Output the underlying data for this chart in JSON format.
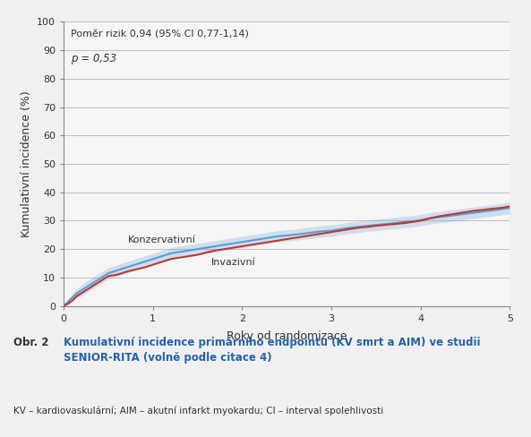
{
  "annotation_line1": "Poměr rizik 0,94 (95% CI 0,77-1,14)",
  "annotation_line2": "p = 0,53",
  "xlabel": "Roky od randomizace",
  "ylabel": "Kumulativní incidence (%)",
  "xlim": [
    0,
    5
  ],
  "ylim": [
    0,
    100
  ],
  "yticks": [
    0,
    10,
    20,
    30,
    40,
    50,
    60,
    70,
    80,
    90,
    100
  ],
  "xticks": [
    0,
    1,
    2,
    3,
    4,
    5
  ],
  "conservative_color": "#5b9bd5",
  "invasive_color": "#c0392b",
  "conservative_label": "Konzervativní",
  "invasive_label": "Invazivní",
  "background_color": "#ffffff",
  "grid_color": "#c0c0c0",
  "caption_label": "Obr. 2",
  "caption_title": "Kumulativní incidence primárního endpointu (KV smrt a AIM) ve studii\nSENIOR-RITA (volně podle citace 4)",
  "caption_abbrev": "KV – kardiovaskulární; AIM – akutní infarkt myokardu; CI – interval spolehlivosti",
  "conservative_x": [
    0.0,
    0.05,
    0.1,
    0.15,
    0.2,
    0.25,
    0.3,
    0.35,
    0.4,
    0.45,
    0.5,
    0.6,
    0.7,
    0.8,
    0.9,
    1.0,
    1.1,
    1.2,
    1.3,
    1.4,
    1.5,
    1.6,
    1.7,
    1.8,
    1.9,
    2.0,
    2.1,
    2.2,
    2.3,
    2.4,
    2.5,
    2.6,
    2.7,
    2.8,
    2.9,
    3.0,
    3.1,
    3.2,
    3.3,
    3.4,
    3.5,
    3.6,
    3.7,
    3.8,
    3.9,
    4.0,
    4.1,
    4.2,
    4.3,
    4.4,
    4.5,
    4.6,
    4.7,
    4.8,
    4.9,
    5.0
  ],
  "conservative_y": [
    0.0,
    1.5,
    3.0,
    4.5,
    5.5,
    6.5,
    7.5,
    8.5,
    9.5,
    10.5,
    11.5,
    12.5,
    13.5,
    14.5,
    15.5,
    16.5,
    17.5,
    18.5,
    19.0,
    19.5,
    20.0,
    20.5,
    21.0,
    21.5,
    22.0,
    22.5,
    23.0,
    23.5,
    24.0,
    24.5,
    24.8,
    25.1,
    25.5,
    25.9,
    26.3,
    26.5,
    27.0,
    27.5,
    27.8,
    28.2,
    28.5,
    28.8,
    29.1,
    29.5,
    29.8,
    30.2,
    30.8,
    31.2,
    31.6,
    32.0,
    32.4,
    32.8,
    33.2,
    33.6,
    34.0,
    34.5
  ],
  "conservative_ci_upper": [
    0.0,
    2.5,
    4.5,
    6.0,
    7.5,
    8.5,
    9.5,
    10.5,
    11.5,
    12.5,
    13.5,
    14.5,
    15.5,
    16.5,
    17.5,
    18.5,
    19.5,
    20.5,
    21.0,
    21.5,
    22.0,
    22.5,
    23.0,
    23.5,
    24.0,
    24.5,
    25.0,
    25.5,
    26.0,
    26.5,
    26.8,
    27.1,
    27.5,
    27.9,
    28.3,
    28.5,
    29.0,
    29.5,
    29.8,
    30.2,
    30.5,
    30.8,
    31.1,
    31.5,
    31.8,
    32.2,
    32.8,
    33.2,
    33.6,
    34.0,
    34.4,
    34.8,
    35.2,
    35.6,
    36.0,
    36.5
  ],
  "conservative_ci_lower": [
    0.0,
    0.5,
    1.5,
    3.0,
    3.5,
    4.5,
    5.5,
    6.5,
    7.5,
    8.5,
    9.5,
    10.5,
    11.5,
    12.5,
    13.5,
    14.5,
    15.5,
    16.5,
    17.0,
    17.5,
    18.0,
    18.5,
    19.0,
    19.5,
    20.0,
    20.5,
    21.0,
    21.5,
    22.0,
    22.5,
    22.8,
    23.1,
    23.5,
    23.9,
    24.3,
    24.5,
    25.0,
    25.5,
    25.8,
    26.2,
    26.5,
    26.8,
    27.1,
    27.5,
    27.8,
    28.2,
    28.8,
    29.2,
    29.6,
    30.0,
    30.4,
    30.8,
    31.2,
    31.6,
    32.0,
    32.5
  ],
  "invasive_x": [
    0.0,
    0.05,
    0.1,
    0.15,
    0.2,
    0.25,
    0.3,
    0.35,
    0.4,
    0.45,
    0.5,
    0.6,
    0.7,
    0.8,
    0.9,
    1.0,
    1.1,
    1.2,
    1.3,
    1.4,
    1.5,
    1.6,
    1.7,
    1.8,
    1.9,
    2.0,
    2.1,
    2.2,
    2.3,
    2.4,
    2.5,
    2.6,
    2.7,
    2.8,
    2.9,
    3.0,
    3.1,
    3.2,
    3.3,
    3.4,
    3.5,
    3.6,
    3.7,
    3.8,
    3.9,
    4.0,
    4.1,
    4.2,
    4.3,
    4.4,
    4.5,
    4.6,
    4.7,
    4.8,
    4.9,
    5.0
  ],
  "invasive_y": [
    0.0,
    0.8,
    2.0,
    3.5,
    4.5,
    5.5,
    6.5,
    7.5,
    8.5,
    9.5,
    10.5,
    11.0,
    12.0,
    12.8,
    13.5,
    14.5,
    15.5,
    16.5,
    17.0,
    17.5,
    18.0,
    18.8,
    19.5,
    20.0,
    20.5,
    21.0,
    21.5,
    22.0,
    22.5,
    23.0,
    23.5,
    24.0,
    24.5,
    25.0,
    25.5,
    26.0,
    26.5,
    27.0,
    27.5,
    27.8,
    28.2,
    28.5,
    28.8,
    29.1,
    29.5,
    30.0,
    30.8,
    31.5,
    32.0,
    32.5,
    33.0,
    33.5,
    33.8,
    34.2,
    34.5,
    35.0
  ]
}
